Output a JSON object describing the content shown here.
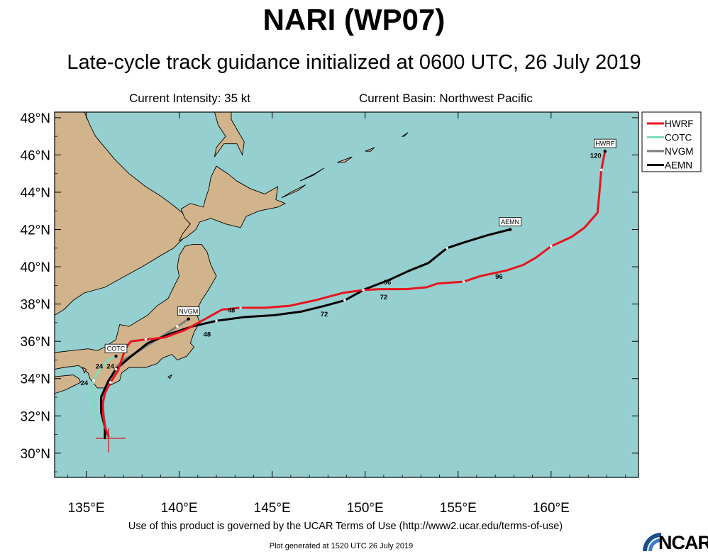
{
  "header": {
    "title": "NARI (WP07)",
    "subtitle": "Late-cycle track guidance initialized at 0600 UTC, 26 July 2019",
    "intensity": "Current Intensity: 35 kt",
    "basin": "Current Basin: Northwest Pacific"
  },
  "footer": {
    "terms": "Use of this product is governed by the UCAR Terms of Use (http://www2.ucar.edu/terms-of-use)",
    "generated": "Plot generated at 1520 UTC   26 July 2019",
    "logo_text": "NCAR"
  },
  "colors": {
    "ocean": "#96cfcf",
    "land": "#d2b48c",
    "HWRF": "#e8141e",
    "COTC": "#7ddcbe",
    "NVGM": "#7d7d7d",
    "AEMN": "#000000"
  },
  "chart_data": {
    "type": "line",
    "title": "NARI (WP07)",
    "subtitle": "Late-cycle track guidance initialized at 0600 UTC, 26 July 2019",
    "xlim": [
      133.3,
      164.7
    ],
    "ylim": [
      28.7,
      48.3
    ],
    "x_ticks": [
      {
        "value": 135,
        "label": "135°E"
      },
      {
        "value": 140,
        "label": "140°E"
      },
      {
        "value": 145,
        "label": "145°E"
      },
      {
        "value": 150,
        "label": "150°E"
      },
      {
        "value": 155,
        "label": "155°E"
      },
      {
        "value": 160,
        "label": "160°E"
      }
    ],
    "y_ticks": [
      {
        "value": 30,
        "label": "30°N"
      },
      {
        "value": 32,
        "label": "32°N"
      },
      {
        "value": 34,
        "label": "34°N"
      },
      {
        "value": 36,
        "label": "36°N"
      },
      {
        "value": 38,
        "label": "38°N"
      },
      {
        "value": 40,
        "label": "40°N"
      },
      {
        "value": 42,
        "label": "42°N"
      },
      {
        "value": 44,
        "label": "44°N"
      },
      {
        "value": 46,
        "label": "46°N"
      },
      {
        "value": 48,
        "label": "48°N"
      }
    ],
    "current_position": {
      "lon": 136.2,
      "lat": 30.8
    },
    "legend_position": "right",
    "series": [
      {
        "name": "HWRF",
        "color": "#e8141e",
        "end_label": "HWRF",
        "points": [
          [
            136.2,
            30.9
          ],
          [
            136.0,
            31.4
          ],
          [
            135.9,
            32.1
          ],
          [
            135.9,
            32.7
          ],
          [
            136.0,
            33.2
          ],
          [
            136.3,
            33.8
          ],
          [
            136.7,
            34.4
          ],
          [
            136.9,
            35.0
          ],
          [
            137.1,
            35.6
          ],
          [
            137.4,
            36.0
          ],
          [
            138.2,
            36.1
          ],
          [
            139.2,
            36.2
          ],
          [
            140.3,
            36.6
          ],
          [
            141.4,
            37.2
          ],
          [
            142.3,
            37.7
          ],
          [
            143.3,
            37.8
          ],
          [
            144.6,
            37.8
          ],
          [
            145.9,
            37.9
          ],
          [
            147.3,
            38.2
          ],
          [
            148.8,
            38.6
          ],
          [
            149.9,
            38.75
          ],
          [
            150.8,
            38.8
          ],
          [
            152.2,
            38.8
          ],
          [
            153.3,
            38.9
          ],
          [
            153.9,
            39.1
          ],
          [
            155.3,
            39.2
          ],
          [
            156.2,
            39.5
          ],
          [
            157.6,
            39.8
          ],
          [
            158.5,
            40.1
          ],
          [
            159.2,
            40.5
          ],
          [
            160.0,
            41.1
          ],
          [
            161.1,
            41.6
          ],
          [
            161.8,
            42.1
          ],
          [
            162.5,
            42.9
          ],
          [
            162.6,
            44.0
          ],
          [
            162.7,
            45.2
          ],
          [
            162.9,
            46.2
          ]
        ],
        "time_labels": [
          {
            "text": "48",
            "lon": 142.8,
            "lat": 37.7
          },
          {
            "text": "72",
            "lon": 151.0,
            "lat": 38.4
          },
          {
            "text": "96",
            "lon": 157.2,
            "lat": 39.5
          },
          {
            "text": "120",
            "lon": 162.4,
            "lat": 46.0
          }
        ]
      },
      {
        "name": "COTC",
        "color": "#7ddcbe",
        "end_label": "COTC",
        "points": [
          [
            136.1,
            30.9
          ],
          [
            135.8,
            31.5
          ],
          [
            135.5,
            32.1
          ],
          [
            135.4,
            32.8
          ],
          [
            135.3,
            33.4
          ],
          [
            135.4,
            33.9
          ],
          [
            135.6,
            34.3
          ],
          [
            135.9,
            34.7
          ],
          [
            136.2,
            35.0
          ],
          [
            136.6,
            35.2
          ]
        ],
        "time_labels": [
          {
            "text": "24",
            "lon": 134.9,
            "lat": 33.8
          },
          {
            "text": "24",
            "lon": 135.7,
            "lat": 34.7
          }
        ]
      },
      {
        "name": "NVGM",
        "color": "#7d7d7d",
        "end_label": "NVGM",
        "points": [
          [
            136.1,
            31.0
          ],
          [
            136.0,
            31.6
          ],
          [
            135.9,
            32.4
          ],
          [
            135.8,
            33.0
          ],
          [
            136.0,
            33.5
          ],
          [
            136.3,
            34.0
          ],
          [
            136.6,
            34.6
          ],
          [
            137.0,
            35.0
          ],
          [
            137.7,
            35.4
          ],
          [
            138.8,
            36.1
          ],
          [
            139.9,
            36.8
          ],
          [
            140.5,
            37.2
          ]
        ],
        "time_labels": [
          {
            "text": "24",
            "lon": 136.3,
            "lat": 34.7
          }
        ]
      },
      {
        "name": "AEMN",
        "color": "#000000",
        "end_label": "AEMN",
        "points": [
          [
            136.0,
            30.8
          ],
          [
            136.0,
            31.4
          ],
          [
            135.8,
            32.2
          ],
          [
            135.8,
            33.0
          ],
          [
            136.2,
            33.9
          ],
          [
            136.6,
            34.5
          ],
          [
            137.3,
            35.1
          ],
          [
            138.3,
            35.9
          ],
          [
            139.5,
            36.4
          ],
          [
            140.7,
            36.8
          ],
          [
            142.0,
            37.1
          ],
          [
            143.5,
            37.3
          ],
          [
            145.1,
            37.4
          ],
          [
            146.6,
            37.6
          ],
          [
            147.8,
            37.9
          ],
          [
            148.9,
            38.2
          ],
          [
            150.0,
            38.8
          ],
          [
            151.3,
            39.3
          ],
          [
            152.4,
            39.8
          ],
          [
            153.4,
            40.2
          ],
          [
            154.4,
            41.0
          ],
          [
            155.3,
            41.3
          ],
          [
            156.6,
            41.7
          ],
          [
            157.8,
            42.0
          ]
        ],
        "time_labels": [
          {
            "text": "48",
            "lon": 141.5,
            "lat": 36.4
          },
          {
            "text": "72",
            "lon": 147.8,
            "lat": 37.5
          },
          {
            "text": "96",
            "lon": 151.2,
            "lat": 39.2
          }
        ]
      }
    ],
    "land": [
      [
        [
          133.3,
          48.3
        ],
        [
          134.9,
          48.3
        ],
        [
          135.2,
          47.6
        ],
        [
          135.5,
          47.0
        ],
        [
          136.5,
          45.8
        ],
        [
          137.3,
          45.0
        ],
        [
          138.2,
          44.3
        ],
        [
          139.0,
          43.8
        ],
        [
          139.8,
          43.2
        ],
        [
          140.4,
          42.7
        ],
        [
          140.7,
          42.0
        ],
        [
          140.4,
          41.7
        ],
        [
          139.7,
          41.0
        ],
        [
          139.0,
          40.6
        ],
        [
          138.0,
          40.0
        ],
        [
          136.9,
          39.4
        ],
        [
          136.0,
          38.9
        ],
        [
          134.9,
          38.6
        ],
        [
          134.3,
          38.2
        ],
        [
          133.8,
          37.7
        ],
        [
          133.3,
          37.4
        ]
      ],
      [
        [
          133.3,
          35.4
        ],
        [
          134.2,
          35.5
        ],
        [
          135.1,
          35.6
        ],
        [
          135.6,
          35.5
        ],
        [
          136.0,
          35.7
        ],
        [
          136.6,
          36.1
        ],
        [
          136.8,
          36.9
        ],
        [
          137.3,
          36.8
        ],
        [
          137.8,
          37.1
        ],
        [
          138.3,
          37.4
        ],
        [
          138.8,
          37.9
        ],
        [
          139.4,
          38.3
        ],
        [
          139.7,
          38.9
        ],
        [
          140.0,
          39.5
        ],
        [
          139.9,
          40.0
        ],
        [
          140.0,
          40.6
        ],
        [
          140.3,
          41.1
        ],
        [
          140.7,
          41.2
        ],
        [
          141.2,
          41.2
        ],
        [
          141.5,
          40.8
        ],
        [
          141.7,
          40.1
        ],
        [
          142.0,
          39.5
        ],
        [
          141.6,
          38.8
        ],
        [
          141.2,
          38.2
        ],
        [
          140.9,
          37.6
        ],
        [
          141.1,
          37.0
        ],
        [
          140.8,
          36.5
        ],
        [
          140.6,
          35.9
        ],
        [
          140.8,
          35.7
        ],
        [
          140.4,
          35.2
        ],
        [
          139.9,
          35.0
        ],
        [
          139.6,
          35.3
        ],
        [
          139.1,
          35.1
        ],
        [
          138.8,
          34.8
        ],
        [
          138.2,
          34.6
        ],
        [
          137.3,
          34.6
        ],
        [
          136.9,
          34.3
        ],
        [
          136.8,
          33.9
        ],
        [
          136.0,
          33.5
        ],
        [
          135.6,
          33.5
        ],
        [
          135.2,
          34.0
        ],
        [
          135.1,
          34.3
        ],
        [
          134.6,
          34.7
        ],
        [
          133.8,
          34.6
        ],
        [
          133.3,
          34.5
        ]
      ],
      [
        [
          133.3,
          34.1
        ],
        [
          134.3,
          34.2
        ],
        [
          134.6,
          34.0
        ],
        [
          134.7,
          33.8
        ],
        [
          134.3,
          33.6
        ],
        [
          133.9,
          33.4
        ],
        [
          133.3,
          33.2
        ]
      ],
      [
        [
          134.8,
          34.6
        ],
        [
          135.0,
          34.5
        ],
        [
          134.9,
          34.3
        ],
        [
          134.8,
          34.6
        ]
      ],
      [
        [
          140.0,
          41.4
        ],
        [
          140.2,
          41.8
        ],
        [
          140.6,
          42.3
        ],
        [
          140.3,
          42.6
        ],
        [
          140.1,
          43.1
        ],
        [
          140.6,
          43.4
        ],
        [
          141.3,
          43.2
        ],
        [
          141.4,
          43.6
        ],
        [
          141.6,
          44.2
        ],
        [
          141.7,
          44.8
        ],
        [
          142.0,
          45.4
        ],
        [
          142.6,
          45.0
        ],
        [
          143.1,
          44.6
        ],
        [
          143.8,
          44.2
        ],
        [
          144.6,
          43.9
        ],
        [
          145.3,
          44.3
        ],
        [
          145.2,
          43.6
        ],
        [
          145.7,
          43.4
        ],
        [
          145.3,
          43.2
        ],
        [
          144.3,
          43.0
        ],
        [
          143.6,
          42.7
        ],
        [
          143.3,
          42.1
        ],
        [
          142.5,
          42.3
        ],
        [
          141.7,
          42.6
        ],
        [
          141.1,
          42.4
        ],
        [
          140.9,
          42.0
        ],
        [
          140.4,
          41.6
        ],
        [
          140.0,
          41.4
        ]
      ],
      [
        [
          141.9,
          48.3
        ],
        [
          142.1,
          47.6
        ],
        [
          142.5,
          47.0
        ],
        [
          142.0,
          46.4
        ],
        [
          141.9,
          45.9
        ],
        [
          142.4,
          46.6
        ],
        [
          143.1,
          46.6
        ],
        [
          143.4,
          46.0
        ],
        [
          143.5,
          46.7
        ],
        [
          143.2,
          47.2
        ],
        [
          142.8,
          47.9
        ],
        [
          142.8,
          48.3
        ]
      ],
      [
        [
          146.5,
          44.6
        ],
        [
          147.3,
          45.0
        ],
        [
          147.8,
          45.3
        ],
        [
          147.2,
          44.9
        ],
        [
          146.5,
          44.6
        ]
      ],
      [
        [
          145.5,
          43.7
        ],
        [
          146.4,
          44.1
        ],
        [
          146.8,
          44.4
        ],
        [
          146.0,
          44.0
        ],
        [
          145.5,
          43.7
        ]
      ],
      [
        [
          148.5,
          45.6
        ],
        [
          149.3,
          45.9
        ],
        [
          148.9,
          45.6
        ],
        [
          148.5,
          45.6
        ]
      ],
      [
        [
          150.0,
          46.2
        ],
        [
          150.5,
          46.4
        ],
        [
          150.3,
          46.2
        ],
        [
          150.0,
          46.2
        ]
      ],
      [
        [
          152.0,
          47.0
        ],
        [
          152.3,
          47.2
        ],
        [
          152.1,
          47.0
        ],
        [
          152.0,
          47.0
        ]
      ],
      [
        [
          139.4,
          34.1
        ],
        [
          139.6,
          34.2
        ],
        [
          139.5,
          34.0
        ],
        [
          139.4,
          34.1
        ]
      ]
    ]
  }
}
